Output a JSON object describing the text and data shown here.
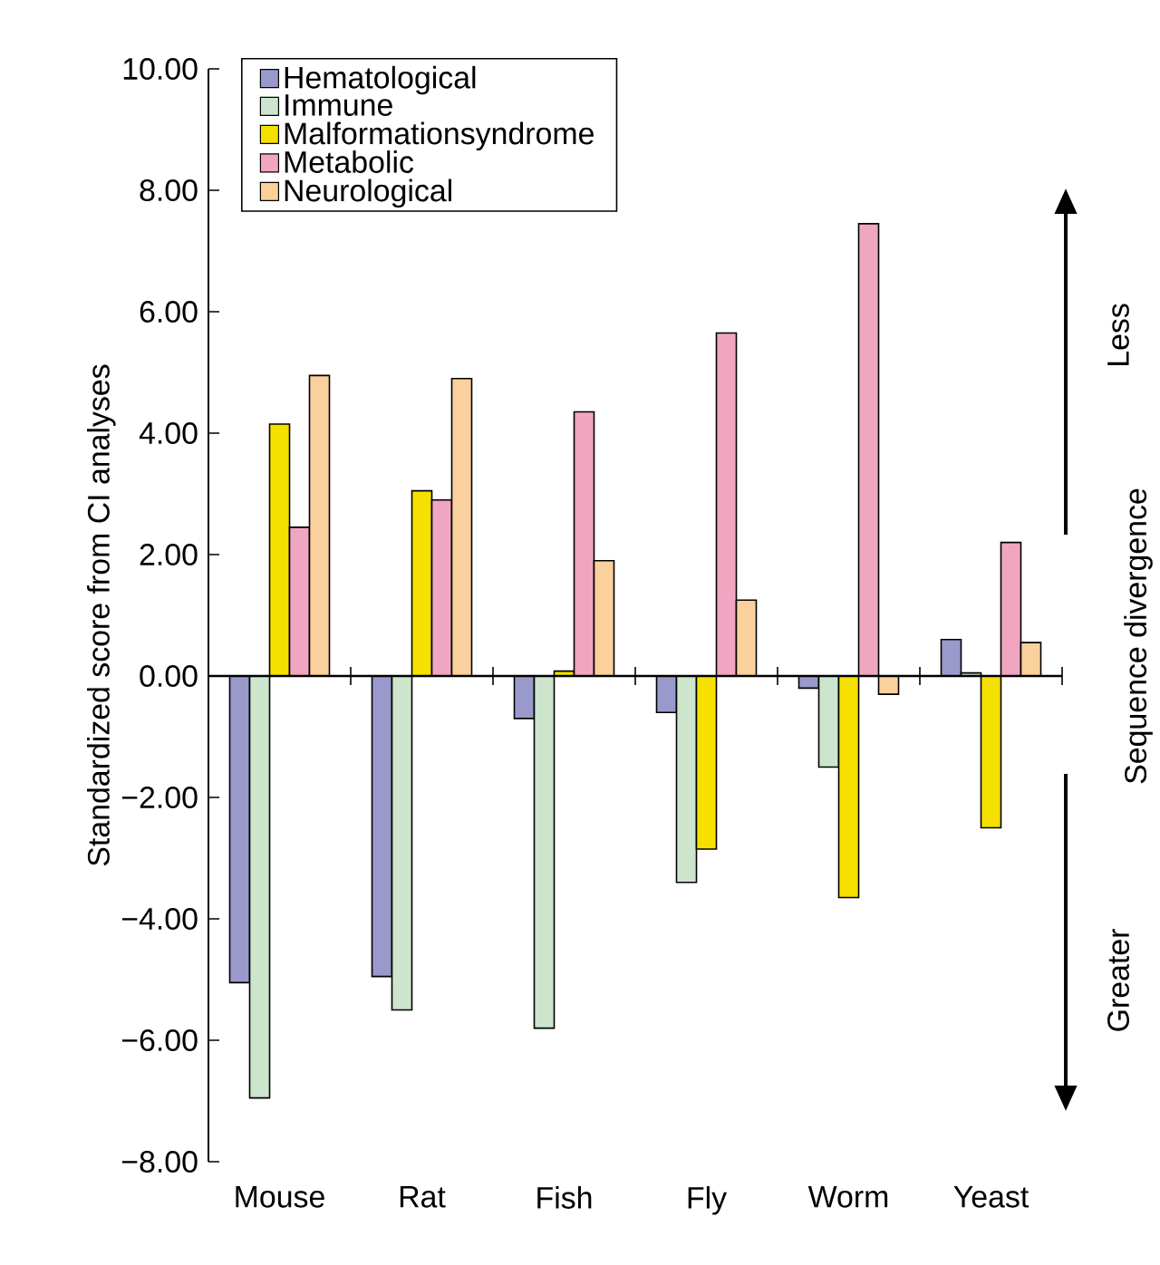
{
  "chart_data": {
    "type": "bar",
    "ylabel": "Standardized score from CI analyses",
    "categories": [
      "Mouse",
      "Rat",
      "Fish",
      "Fly",
      "Worm",
      "Yeast"
    ],
    "series": [
      {
        "name": "Hematological",
        "color": "#9999cc",
        "values": [
          -5.05,
          -4.95,
          -0.7,
          -0.6,
          -0.2,
          0.6
        ]
      },
      {
        "name": "Immune",
        "color": "#cce5cc",
        "values": [
          -6.95,
          -5.5,
          -5.8,
          -3.4,
          -1.5,
          0.05
        ]
      },
      {
        "name": "Malformationsyndrome",
        "color": "#f5e000",
        "values": [
          4.15,
          3.05,
          0.08,
          -2.85,
          -3.65,
          -2.5
        ]
      },
      {
        "name": "Metabolic",
        "color": "#f0a6c0",
        "values": [
          2.45,
          2.9,
          4.35,
          5.65,
          7.45,
          2.2
        ]
      },
      {
        "name": "Neurological",
        "color": "#fad09c",
        "values": [
          4.95,
          4.9,
          1.9,
          1.25,
          -0.3,
          0.55
        ]
      }
    ],
    "ylim": [
      -8,
      10
    ],
    "yticks": [
      {
        "value": -8,
        "label": "−8.00"
      },
      {
        "value": -6,
        "label": "−6.00"
      },
      {
        "value": -4,
        "label": "−4.00"
      },
      {
        "value": -2,
        "label": "−2.00"
      },
      {
        "value": 0,
        "label": "0.00"
      },
      {
        "value": 2,
        "label": "2.00"
      },
      {
        "value": 4,
        "label": "4.00"
      },
      {
        "value": 6,
        "label": "6.00"
      },
      {
        "value": 8,
        "label": "8.00"
      },
      {
        "value": 10,
        "label": "10.00"
      }
    ],
    "legend": "top left",
    "annotations": [
      "Less",
      "Sequence divergence",
      "Greater"
    ]
  }
}
